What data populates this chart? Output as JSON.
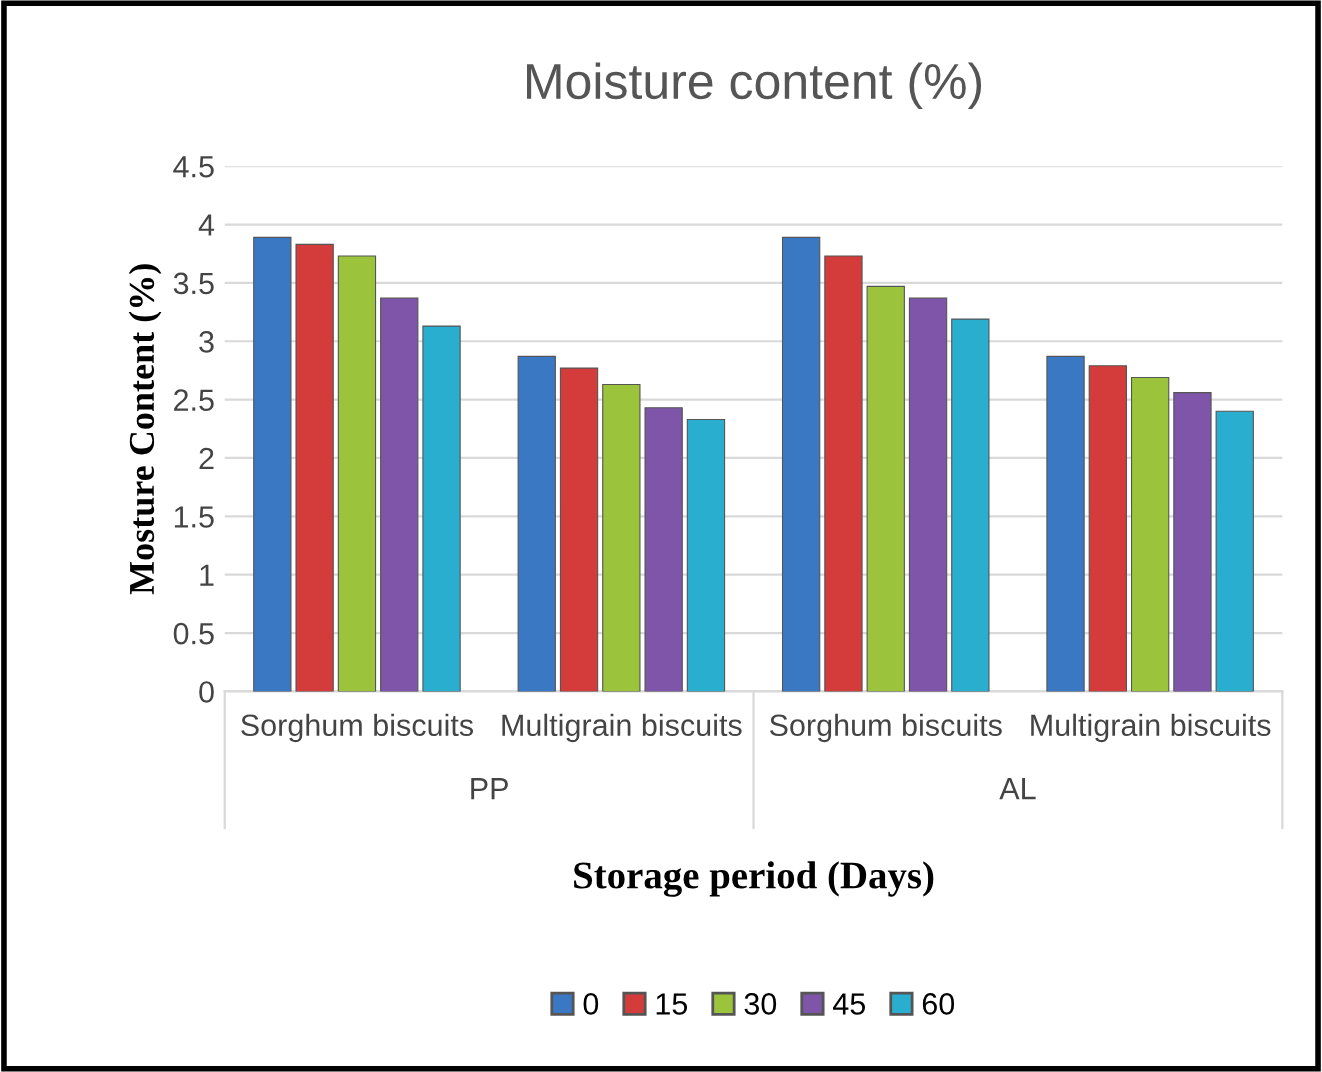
{
  "chart_data": {
    "type": "bar",
    "title": "Moisture content (%)",
    "xlabel": "Storage period (Days)",
    "ylabel": "Mosture Content (%)",
    "categories": [
      "Sorghum biscuits",
      "Multigrain biscuits",
      "Sorghum biscuits",
      "Multigrain biscuits"
    ],
    "annotations": [
      "PP",
      "AL"
    ],
    "series": [
      {
        "name": "0",
        "color": "#3a78c4",
        "values": [
          3.89,
          2.87,
          3.89,
          2.87
        ]
      },
      {
        "name": "15",
        "color": "#d33c3a",
        "values": [
          3.83,
          2.77,
          3.73,
          2.79
        ]
      },
      {
        "name": "30",
        "color": "#9bc43c",
        "values": [
          3.73,
          2.63,
          3.47,
          2.69
        ]
      },
      {
        "name": "45",
        "color": "#7e55a8",
        "values": [
          3.37,
          2.43,
          3.37,
          2.56
        ]
      },
      {
        "name": "60",
        "color": "#2aaed0",
        "values": [
          3.13,
          2.33,
          3.19,
          2.4
        ]
      }
    ],
    "ylim": [
      0,
      4.5
    ],
    "yticks": [
      0,
      0.5,
      1,
      1.5,
      2,
      2.5,
      3,
      3.5,
      4,
      4.5
    ],
    "grid": "y",
    "legend": "bottom"
  }
}
